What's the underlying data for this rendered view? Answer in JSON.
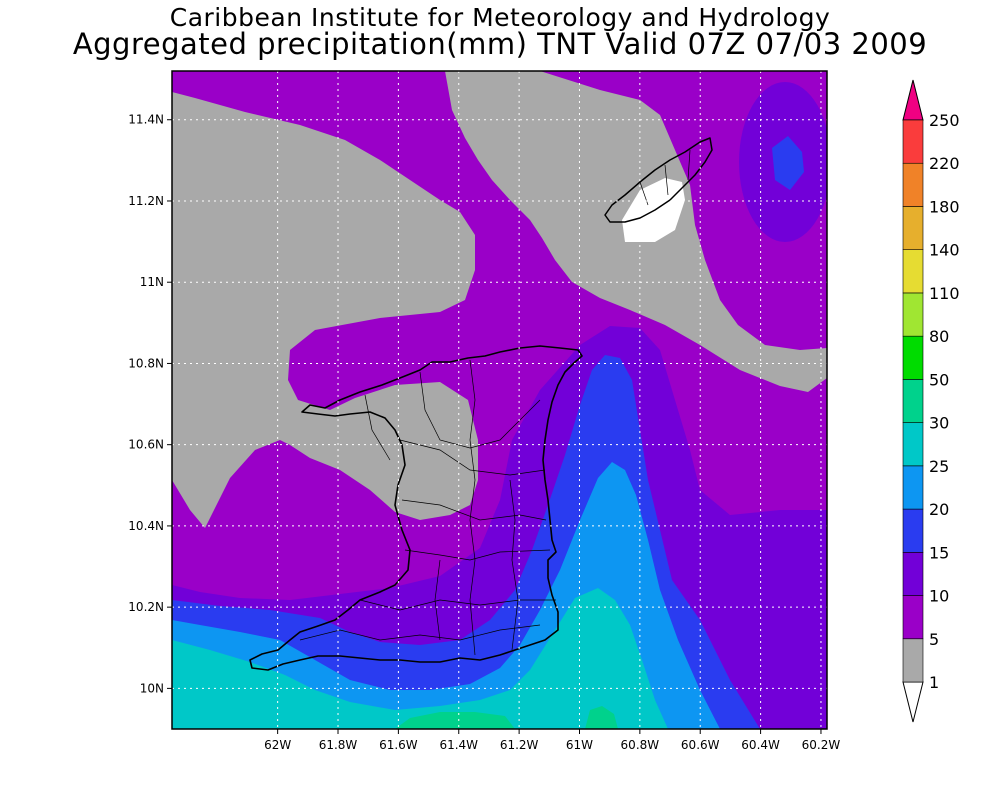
{
  "header": {
    "title": "Caribbean Institute for Meteorology and Hydrology",
    "subtitle": "Aggregated precipitation(mm) TNT Valid 07Z 07/03 2009"
  },
  "map": {
    "lon_range": [
      -62.35,
      -60.18
    ],
    "lat_range": [
      9.9,
      11.52
    ],
    "lat_ticks": [
      {
        "value": 10.0,
        "label": "10N"
      },
      {
        "value": 10.2,
        "label": "10.2N"
      },
      {
        "value": 10.4,
        "label": "10.4N"
      },
      {
        "value": 10.6,
        "label": "10.6N"
      },
      {
        "value": 10.8,
        "label": "10.8N"
      },
      {
        "value": 11.0,
        "label": "11N"
      },
      {
        "value": 11.2,
        "label": "11.2N"
      },
      {
        "value": 11.4,
        "label": "11.4N"
      }
    ],
    "lon_ticks": [
      {
        "value": -62.0,
        "label": "62W"
      },
      {
        "value": -61.8,
        "label": "61.8W"
      },
      {
        "value": -61.6,
        "label": "61.6W"
      },
      {
        "value": -61.4,
        "label": "61.4W"
      },
      {
        "value": -61.2,
        "label": "61.2W"
      },
      {
        "value": -61.0,
        "label": "61W"
      },
      {
        "value": -60.8,
        "label": "60.8W"
      },
      {
        "value": -60.6,
        "label": "60.6W"
      },
      {
        "value": -60.4,
        "label": "60.4W"
      },
      {
        "value": -60.2,
        "label": "60.2W"
      }
    ],
    "grid": true,
    "features": [
      "Trinidad",
      "Tobago"
    ]
  },
  "colorbar": {
    "levels": [
      {
        "label": "1",
        "color": "#ffffff"
      },
      {
        "label": "5",
        "color": "#a9a9a9"
      },
      {
        "label": "10",
        "color": "#9a00c8"
      },
      {
        "label": "15",
        "color": "#7200d8"
      },
      {
        "label": "20",
        "color": "#2a3cf0"
      },
      {
        "label": "25",
        "color": "#0d96f2"
      },
      {
        "label": "30",
        "color": "#00c8c8"
      },
      {
        "label": "50",
        "color": "#00d28c"
      },
      {
        "label": "80",
        "color": "#00dc00"
      },
      {
        "label": "110",
        "color": "#a0e632"
      },
      {
        "label": "140",
        "color": "#e6dc32"
      },
      {
        "label": "180",
        "color": "#e6af2d"
      },
      {
        "label": "220",
        "color": "#f08228"
      },
      {
        "label": "250",
        "color": "#fa3c3c"
      }
    ],
    "top_color": "#f00082",
    "bottom_color": "#ffffff"
  },
  "colors": {
    "gray_land": "#a9a9a9",
    "purple": "#9a00c8",
    "violet": "#7200d8",
    "blue": "#2a3cf0",
    "light_blue": "#0d96f2",
    "cyan": "#00c8c8",
    "green": "#00d28c",
    "outline": "#000000"
  }
}
